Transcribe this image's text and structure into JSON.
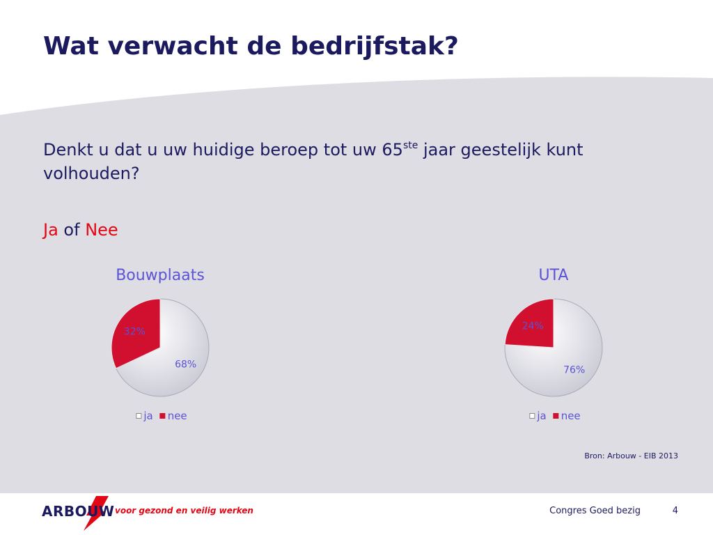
{
  "slide": {
    "title": "Wat verwacht de bedrijfstak?",
    "question_part1": "Denkt u dat u uw huidige beroep tot uw 65",
    "question_sup": "ste",
    "question_part2": " jaar geestelijk kunt volhouden?",
    "answer_ja": "Ja",
    "answer_of": " of ",
    "answer_nee": "Nee",
    "source": "Bron: Arbouw - EIB 2013"
  },
  "footer": {
    "logo_text": "ARBOUW",
    "slogan": "voor gezond en veilig werken",
    "presentation_title": "Congres Goed bezig",
    "page_number": "4"
  },
  "colors": {
    "title": "#1c1a5e",
    "accent_red": "#e30613",
    "chart_text": "#5b53d6",
    "slice_ja": "#e4e4ec",
    "slice_nee": "#d0102e"
  },
  "chart_data": [
    {
      "type": "pie",
      "title": "Bouwplaats",
      "categories": [
        "ja",
        "nee"
      ],
      "values": [
        68,
        32
      ],
      "labels": [
        "68%",
        "32%"
      ],
      "legend_position": "bottom"
    },
    {
      "type": "pie",
      "title": "UTA",
      "categories": [
        "ja",
        "nee"
      ],
      "values": [
        76,
        24
      ],
      "labels": [
        "76%",
        "24%"
      ],
      "legend_position": "bottom"
    }
  ]
}
